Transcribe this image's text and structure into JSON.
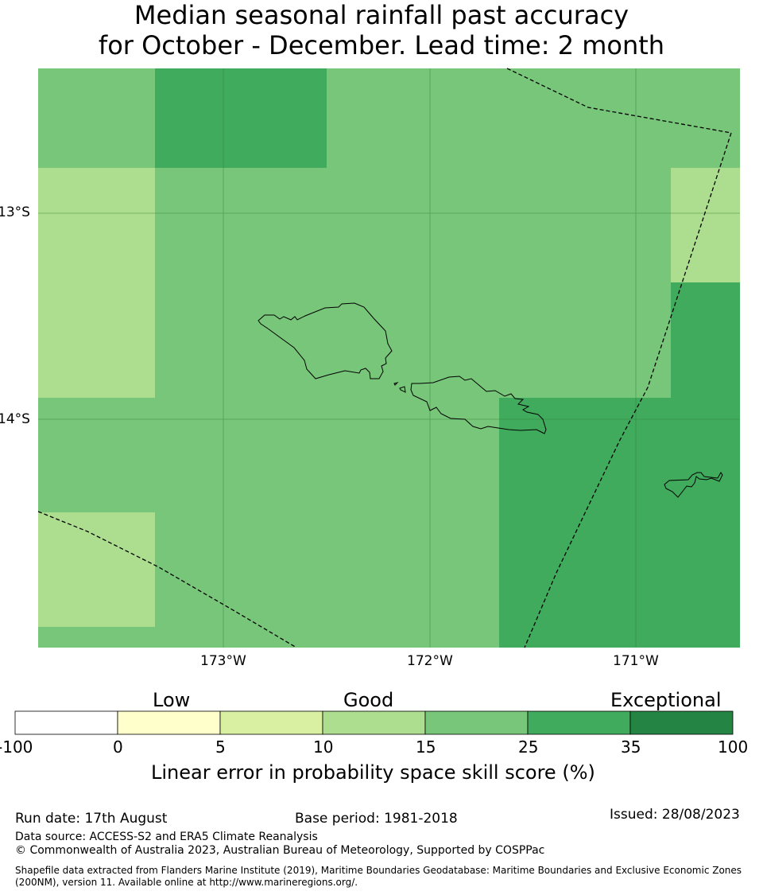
{
  "title": {
    "line1": "Median seasonal rainfall past accuracy",
    "line2": "for October - December. Lead time: 2 month"
  },
  "map": {
    "lon_labels": [
      "173°W",
      "172°W",
      "171°W"
    ],
    "lat_labels": [
      "13°S",
      "14°S"
    ],
    "colors": {
      "band_15_25": "#78c679",
      "band_25_35": "#41ab5d",
      "band_10_15": "#addd8e",
      "gridline": "#2e7d32",
      "boundary": "#000000"
    }
  },
  "legend": {
    "categories": [
      "Low",
      "Good",
      "Exceptional"
    ],
    "ticks": [
      "-100",
      "0",
      "5",
      "10",
      "15",
      "25",
      "35",
      "100"
    ],
    "colors": [
      "#ffffff",
      "#ffffcc",
      "#d9f0a3",
      "#addd8e",
      "#78c679",
      "#41ab5d",
      "#238443"
    ],
    "title": "Linear error in probability space skill score (%)"
  },
  "footer": {
    "run_date": "Run date: 17th August",
    "base_period": "Base period: 1981-2018",
    "issued": "Issued: 28/08/2023",
    "data_source": "Data source: ACCESS-S2 and ERA5 Climate Reanalysis",
    "copyright": "© Commonwealth of Australia 2023, Australian Bureau of Meteorology, Supported by COSPPac",
    "shapefile": "Shapefile data extracted from Flanders Marine Institute (2019), Maritime Boundaries Geodatabase: Maritime Boundaries and Exclusive Economic Zones (200NM), version 11. Available online at http://www.marineregions.org/."
  }
}
